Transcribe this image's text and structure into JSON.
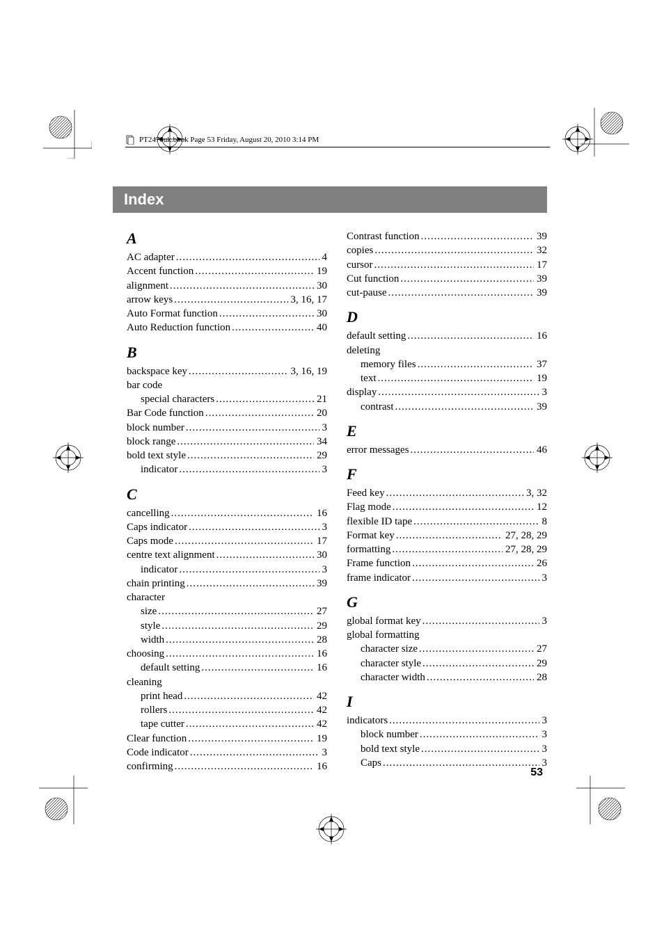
{
  "header_text": "PT2470uk.book  Page 53  Friday, August 20, 2010  3:14 PM",
  "index_title": "Index",
  "page_number": "53",
  "left_col": [
    {
      "type": "letter",
      "value": "A"
    },
    {
      "type": "entry",
      "label": "AC adapter",
      "page": "4"
    },
    {
      "type": "entry",
      "label": "Accent function",
      "page": "19"
    },
    {
      "type": "entry",
      "label": "alignment",
      "page": "30"
    },
    {
      "type": "entry",
      "label": "arrow keys",
      "page": "3, 16, 17"
    },
    {
      "type": "entry",
      "label": "Auto Format function",
      "page": "30"
    },
    {
      "type": "entry",
      "label": "Auto Reduction function",
      "page": "40"
    },
    {
      "type": "letter",
      "value": "B"
    },
    {
      "type": "entry",
      "label": "backspace key",
      "page": "3, 16, 19"
    },
    {
      "type": "entry",
      "label": "bar code",
      "nopage": true
    },
    {
      "type": "entry",
      "label": "special characters",
      "page": "21",
      "indent": 1
    },
    {
      "type": "entry",
      "label": "Bar Code function",
      "page": "20"
    },
    {
      "type": "entry",
      "label": "block number",
      "page": "3"
    },
    {
      "type": "entry",
      "label": "block range",
      "page": "34"
    },
    {
      "type": "entry",
      "label": "bold text style",
      "page": "29"
    },
    {
      "type": "entry",
      "label": "indicator",
      "page": "3",
      "indent": 1
    },
    {
      "type": "letter",
      "value": "C"
    },
    {
      "type": "entry",
      "label": "cancelling",
      "page": "16"
    },
    {
      "type": "entry",
      "label": "Caps indicator",
      "page": "3"
    },
    {
      "type": "entry",
      "label": "Caps mode",
      "page": "17"
    },
    {
      "type": "entry",
      "label": "centre text alignment",
      "page": "30"
    },
    {
      "type": "entry",
      "label": "indicator",
      "page": "3",
      "indent": 1
    },
    {
      "type": "entry",
      "label": "chain printing",
      "page": "39"
    },
    {
      "type": "entry",
      "label": "character",
      "nopage": true
    },
    {
      "type": "entry",
      "label": "size",
      "page": "27",
      "indent": 1
    },
    {
      "type": "entry",
      "label": "style",
      "page": "29",
      "indent": 1
    },
    {
      "type": "entry",
      "label": "width",
      "page": "28",
      "indent": 1
    },
    {
      "type": "entry",
      "label": "choosing",
      "page": "16"
    },
    {
      "type": "entry",
      "label": "default setting",
      "page": "16",
      "indent": 1
    },
    {
      "type": "entry",
      "label": "cleaning",
      "nopage": true
    },
    {
      "type": "entry",
      "label": "print head",
      "page": "42",
      "indent": 1
    },
    {
      "type": "entry",
      "label": "rollers",
      "page": "42",
      "indent": 1
    },
    {
      "type": "entry",
      "label": "tape cutter",
      "page": "42",
      "indent": 1
    },
    {
      "type": "entry",
      "label": "Clear function",
      "page": "19"
    },
    {
      "type": "entry",
      "label": "Code indicator",
      "page": "3"
    },
    {
      "type": "entry",
      "label": "confirming",
      "page": "16"
    }
  ],
  "right_col": [
    {
      "type": "entry",
      "label": "Contrast function",
      "page": "39"
    },
    {
      "type": "entry",
      "label": "copies",
      "page": "32"
    },
    {
      "type": "entry",
      "label": "cursor",
      "page": "17"
    },
    {
      "type": "entry",
      "label": "Cut function",
      "page": "39"
    },
    {
      "type": "entry",
      "label": "cut-pause",
      "page": "39"
    },
    {
      "type": "letter",
      "value": "D"
    },
    {
      "type": "entry",
      "label": "default setting",
      "page": "16"
    },
    {
      "type": "entry",
      "label": "deleting",
      "nopage": true
    },
    {
      "type": "entry",
      "label": "memory files",
      "page": "37",
      "indent": 1
    },
    {
      "type": "entry",
      "label": "text",
      "page": "19",
      "indent": 1
    },
    {
      "type": "entry",
      "label": "display",
      "page": "3"
    },
    {
      "type": "entry",
      "label": "contrast",
      "page": "39",
      "indent": 1
    },
    {
      "type": "letter",
      "value": "E"
    },
    {
      "type": "entry",
      "label": "error messages",
      "page": "46"
    },
    {
      "type": "letter",
      "value": "F"
    },
    {
      "type": "entry",
      "label": "Feed key",
      "page": "3, 32"
    },
    {
      "type": "entry",
      "label": "Flag mode",
      "page": "12"
    },
    {
      "type": "entry",
      "label": "flexible ID tape",
      "page": "8"
    },
    {
      "type": "entry",
      "label": "Format key",
      "page": "27, 28, 29"
    },
    {
      "type": "entry",
      "label": "formatting",
      "page": "27, 28, 29"
    },
    {
      "type": "entry",
      "label": "Frame function",
      "page": "26"
    },
    {
      "type": "entry",
      "label": "frame indicator",
      "page": "3"
    },
    {
      "type": "letter",
      "value": "G"
    },
    {
      "type": "entry",
      "label": "global format key",
      "page": "3"
    },
    {
      "type": "entry",
      "label": "global formatting",
      "nopage": true
    },
    {
      "type": "entry",
      "label": "character size",
      "page": "27",
      "indent": 1
    },
    {
      "type": "entry",
      "label": "character style",
      "page": "29",
      "indent": 1
    },
    {
      "type": "entry",
      "label": "character width",
      "page": "28",
      "indent": 1
    },
    {
      "type": "letter",
      "value": "I"
    },
    {
      "type": "entry",
      "label": "indicators",
      "page": "3"
    },
    {
      "type": "entry",
      "label": "block number",
      "page": "3",
      "indent": 1
    },
    {
      "type": "entry",
      "label": "bold text style",
      "page": "3",
      "indent": 1
    },
    {
      "type": "entry",
      "label": "Caps",
      "page": "3",
      "indent": 1
    }
  ]
}
